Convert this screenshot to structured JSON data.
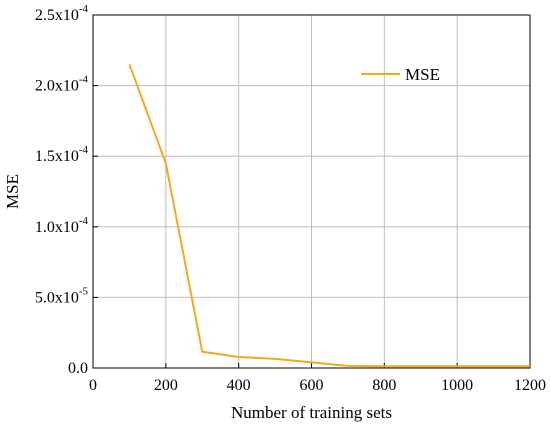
{
  "chart_data": {
    "type": "line",
    "xlabel": "Number of training sets",
    "ylabel": "MSE",
    "xlim": [
      0,
      1200
    ],
    "ylim": [
      0,
      0.00025
    ],
    "grid": true,
    "legend_position": "top-right",
    "x_ticks": [
      0,
      200,
      400,
      600,
      800,
      1000,
      1200
    ],
    "x_tick_labels": [
      "0",
      "200",
      "400",
      "600",
      "800",
      "1000",
      "1200"
    ],
    "y_ticks": [
      0,
      5e-05,
      0.0001,
      0.00015,
      0.0002,
      0.00025
    ],
    "y_tick_labels": [
      {
        "mantissa": "0.0",
        "exp": ""
      },
      {
        "mantissa": "5.0x10",
        "exp": "-5"
      },
      {
        "mantissa": "1.0x10",
        "exp": "-4"
      },
      {
        "mantissa": "1.5x10",
        "exp": "-4"
      },
      {
        "mantissa": "2.0x10",
        "exp": "-4"
      },
      {
        "mantissa": "2.5x10",
        "exp": "-4"
      }
    ],
    "series": [
      {
        "name": "MSE",
        "color": "#F5A81C",
        "x": [
          100,
          200,
          300,
          400,
          500,
          600,
          700,
          800,
          900,
          1000,
          1100,
          1200
        ],
        "y": [
          0.000215,
          0.000145,
          1.15e-05,
          7.8e-06,
          6.5e-06,
          4e-06,
          1.5e-06,
          1.2e-06,
          1.2e-06,
          1.2e-06,
          1.2e-06,
          1.2e-06
        ]
      }
    ]
  }
}
